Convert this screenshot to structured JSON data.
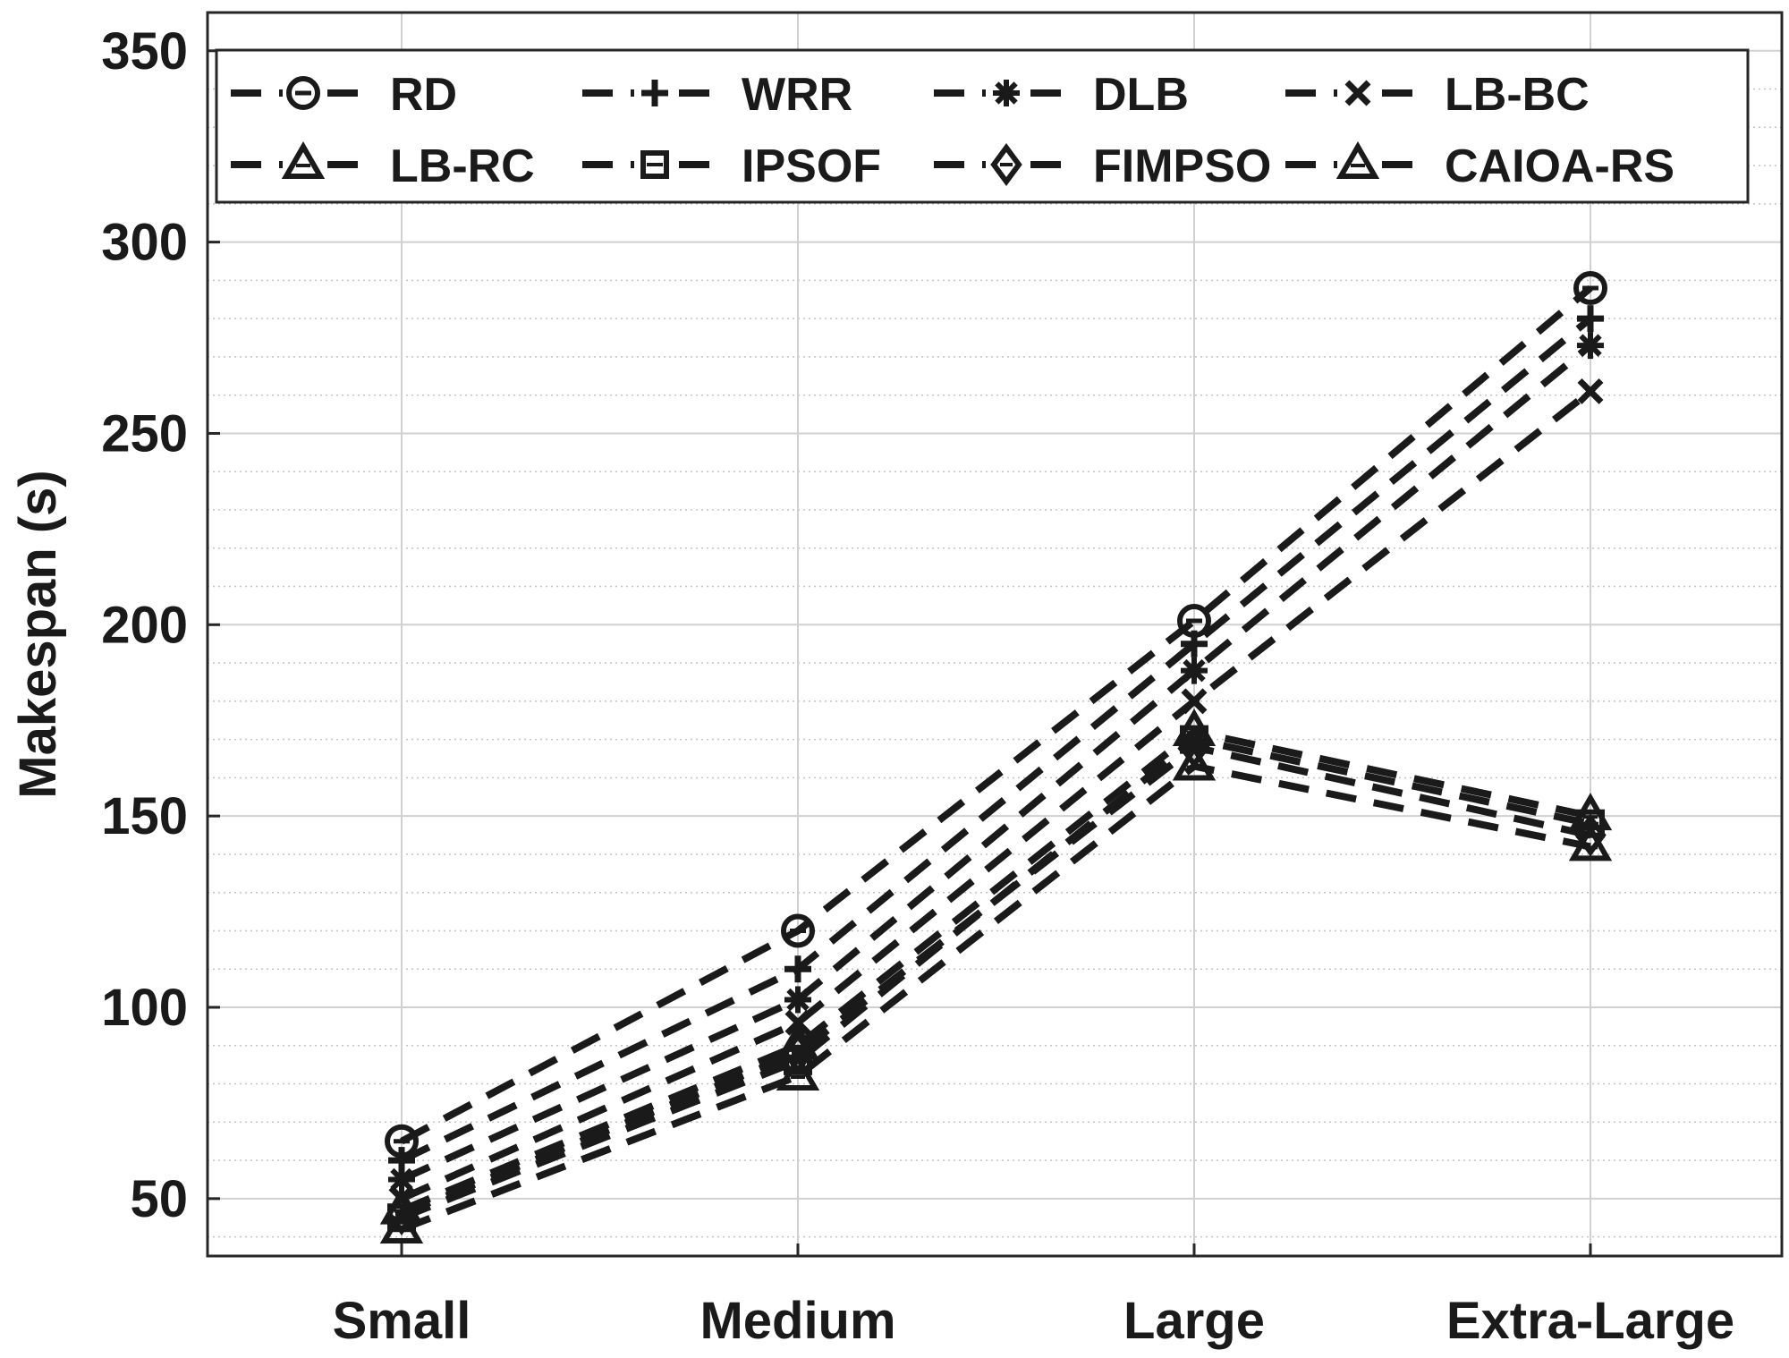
{
  "chart_data": {
    "type": "line",
    "title": "",
    "xlabel": "",
    "ylabel": "Makespan (s)",
    "categories": [
      "Small",
      "Medium",
      "Large",
      "Extra-Large"
    ],
    "ylim": [
      35,
      360
    ],
    "yticks": [
      50,
      100,
      150,
      200,
      250,
      300,
      350
    ],
    "y_minor_step": 10,
    "grid": true,
    "legend_position": "top",
    "line_style": "dashed",
    "line_color": "#1a1a1a",
    "series": [
      {
        "name": "RD",
        "marker": "circle",
        "values": [
          65,
          120,
          201,
          288
        ]
      },
      {
        "name": "WRR",
        "marker": "plus",
        "values": [
          60,
          110,
          195,
          280
        ]
      },
      {
        "name": "DLB",
        "marker": "asterisk",
        "values": [
          55,
          102,
          188,
          273
        ]
      },
      {
        "name": "LB-BC",
        "marker": "x",
        "values": [
          50,
          96,
          180,
          261
        ]
      },
      {
        "name": "LB-RC",
        "marker": "triangle",
        "values": [
          47,
          90,
          172,
          150
        ]
      },
      {
        "name": "IPSOF",
        "marker": "square",
        "values": [
          45,
          86,
          170,
          148
        ]
      },
      {
        "name": "FIMPSO",
        "marker": "diamond",
        "values": [
          46,
          88,
          168,
          145
        ]
      },
      {
        "name": "CAIOA-RS",
        "marker": "triangle",
        "values": [
          42,
          82,
          163,
          142
        ]
      }
    ]
  }
}
